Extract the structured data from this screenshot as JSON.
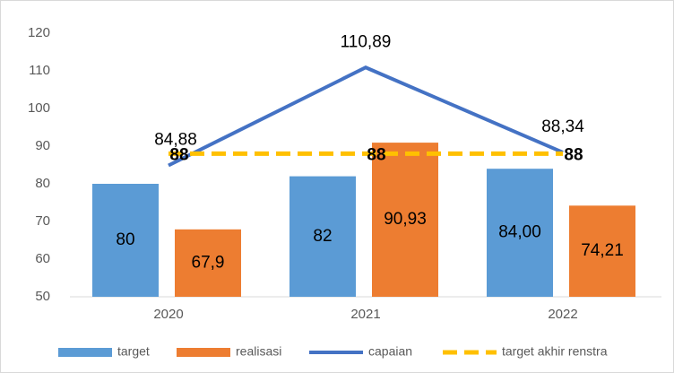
{
  "chart_data": {
    "type": "bar",
    "categories": [
      "2020",
      "2021",
      "2022"
    ],
    "ylim": [
      50,
      120
    ],
    "yticks": [
      50,
      60,
      70,
      80,
      90,
      100,
      110,
      120
    ],
    "legend": "bottom",
    "series": [
      {
        "name": "target",
        "type": "bar",
        "color": "#5b9bd5",
        "values": [
          80,
          82,
          84
        ],
        "value_labels": [
          "80",
          "82",
          "84,00"
        ]
      },
      {
        "name": "realisasi",
        "type": "bar",
        "color": "#ed7d31",
        "values": [
          67.9,
          90.93,
          74.21
        ],
        "value_labels": [
          "67,9",
          "90,93",
          "74,21"
        ]
      },
      {
        "name": "capaian",
        "type": "line",
        "color": "#4472c4",
        "values": [
          84.88,
          110.89,
          88.34
        ],
        "value_labels": [
          "84,88",
          "110,89",
          "88,34"
        ]
      },
      {
        "name": "target akhir renstra",
        "type": "line",
        "dashed": true,
        "color": "#ffc000",
        "values": [
          88,
          88,
          88
        ]
      }
    ]
  }
}
